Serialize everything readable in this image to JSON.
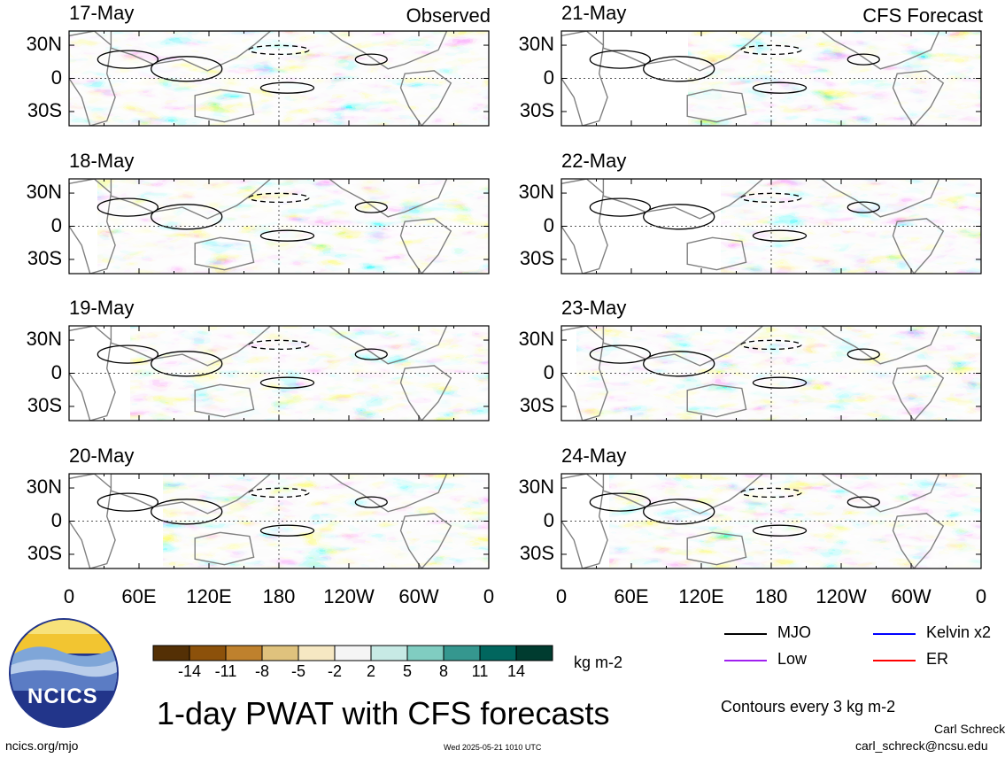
{
  "panels": [
    {
      "date": "17-May",
      "tag": "Observed"
    },
    {
      "date": "18-May",
      "tag": ""
    },
    {
      "date": "19-May",
      "tag": ""
    },
    {
      "date": "20-May",
      "tag": ""
    },
    {
      "date": "21-May",
      "tag": "CFS Forecast"
    },
    {
      "date": "22-May",
      "tag": ""
    },
    {
      "date": "23-May",
      "tag": ""
    },
    {
      "date": "24-May",
      "tag": ""
    }
  ],
  "lat_labels": [
    "30N",
    "0",
    "30S"
  ],
  "lon_labels": [
    "0",
    "60E",
    "120E",
    "180",
    "120W",
    "60W",
    "0"
  ],
  "colorbar": {
    "colors": [
      "#543005",
      "#8c510a",
      "#bf812d",
      "#dfc27d",
      "#f6e8c3",
      "#f5f5f5",
      "#c7eae5",
      "#80cdc1",
      "#35978f",
      "#01665e",
      "#003c30"
    ],
    "labels": [
      "-14",
      "-11",
      "-8",
      "-5",
      "-2",
      "2",
      "5",
      "8",
      "11",
      "14"
    ],
    "units": "kg m-2"
  },
  "legend": [
    {
      "label": "MJO",
      "color": "#000000"
    },
    {
      "label": "Kelvin x2",
      "color": "#0000ff"
    },
    {
      "label": "Low",
      "color": "#a020f0"
    },
    {
      "label": "ER",
      "color": "#ff0000"
    }
  ],
  "contour_note": "Contours every 3 kg m-2",
  "title": "1-day PWAT with CFS forecasts",
  "logo_text": "NCICS",
  "footer": {
    "left": "ncics.org/mjo",
    "center": "Wed 2025-05-21 1010 UTC",
    "author": "Carl Schreck",
    "email": "carl_schreck@ncsu.edu"
  }
}
